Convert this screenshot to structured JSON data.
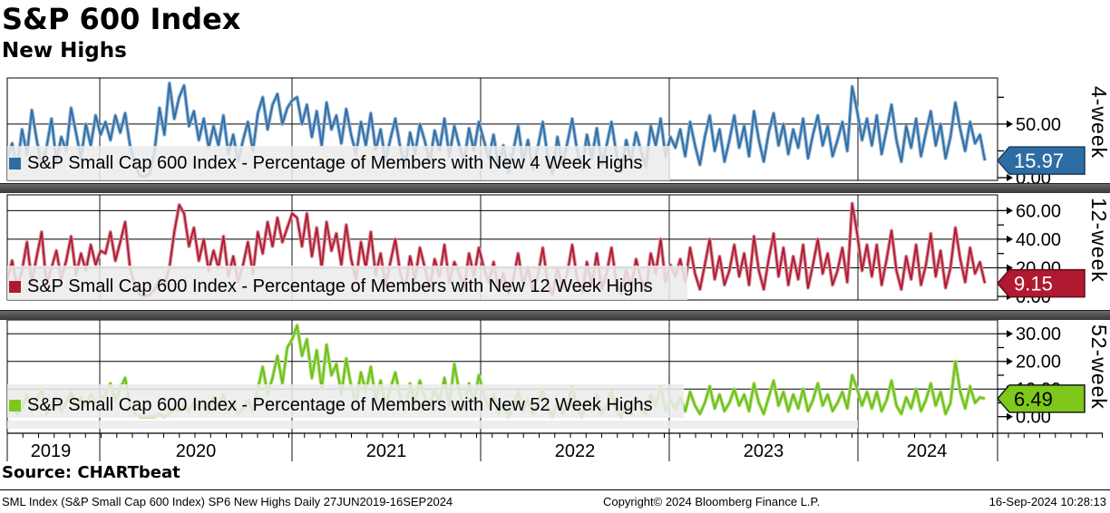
{
  "header": {
    "title": "S&P 600 Index",
    "subtitle": "New Highs"
  },
  "source_line": "Source: CHARTbeat",
  "footer": {
    "left": "SML Index (S&P Small Cap 600 Index) SP6 New Highs  Daily 27JUN2019-16SEP2024",
    "center": "Copyright© 2024 Bloomberg Finance L.P.",
    "right": "16-Sep-2024 10:28:13"
  },
  "x_axis": {
    "year_labels": [
      "2019",
      "2020",
      "2021",
      "2022",
      "2023",
      "2024"
    ]
  },
  "chart_data": [
    {
      "type": "line",
      "axis_label": "4-week",
      "legend": "S&P Small Cap 600 Index - Percentage of Members with New 4 Week Highs",
      "color": "#2e6da4",
      "halo_color": "#8fb2d4",
      "tag": {
        "label": "15.97",
        "bg": "#2e6da4",
        "fg": "#ffffff",
        "border": "#173c5f"
      },
      "ylim": [
        -2.5,
        93
      ],
      "yticks": [
        {
          "v": 50,
          "label": "50.00"
        },
        {
          "v": 0,
          "label": "0.00"
        }
      ],
      "minor_ticks": [
        75,
        25
      ],
      "gridlines": [
        50
      ],
      "values": [
        18,
        32,
        8,
        45,
        22,
        63,
        35,
        12,
        28,
        55,
        15,
        38,
        25,
        65,
        42,
        18,
        50,
        30,
        58,
        40,
        52,
        35,
        58,
        42,
        60,
        30,
        12,
        2,
        1,
        4,
        25,
        65,
        40,
        88,
        55,
        75,
        86,
        48,
        62,
        35,
        55,
        28,
        48,
        30,
        58,
        22,
        40,
        15,
        35,
        52,
        25,
        60,
        75,
        45,
        68,
        78,
        50,
        65,
        72,
        75,
        50,
        68,
        38,
        62,
        30,
        70,
        45,
        58,
        32,
        64,
        40,
        22,
        52,
        30,
        60,
        26,
        45,
        16,
        36,
        55,
        28,
        10,
        42,
        22,
        50,
        34,
        14,
        44,
        26,
        55,
        20,
        48,
        30,
        15,
        46,
        25,
        52,
        35,
        18,
        40,
        10,
        30,
        5,
        25,
        48,
        15,
        35,
        8,
        28,
        52,
        20,
        4,
        38,
        12,
        32,
        55,
        25,
        8,
        40,
        18,
        46,
        12,
        30,
        52,
        22,
        6,
        35,
        15,
        42,
        25,
        10,
        48,
        30,
        55,
        20,
        38,
        28,
        45,
        20,
        52,
        30,
        12,
        38,
        58,
        25,
        45,
        15,
        35,
        58,
        28,
        48,
        20,
        62,
        35,
        15,
        42,
        60,
        30,
        50,
        22,
        45,
        28,
        55,
        18,
        40,
        58,
        30,
        48,
        20,
        35,
        52,
        25,
        85,
        62,
        35,
        55,
        30,
        58,
        22,
        45,
        68,
        35,
        15,
        48,
        28,
        55,
        20,
        42,
        62,
        30,
        50,
        18,
        38,
        70,
        45,
        25,
        52,
        32,
        40,
        15.97
      ]
    },
    {
      "type": "line",
      "axis_label": "12-week",
      "legend": "S&P Small Cap 600 Index - Percentage of Members with New 12 Week Highs",
      "color": "#b01a31",
      "halo_color": "#d78f9c",
      "tag": {
        "label": "9.15",
        "bg": "#b01a31",
        "fg": "#ffffff",
        "border": "#5e0d1a"
      },
      "ylim": [
        -2.5,
        71
      ],
      "yticks": [
        {
          "v": 60,
          "label": "60.00"
        },
        {
          "v": 40,
          "label": "40.00"
        },
        {
          "v": 20,
          "label": "20.00"
        },
        {
          "v": 0,
          "label": "0.00"
        }
      ],
      "minor_ticks": [
        50,
        30,
        10
      ],
      "gridlines": [
        60,
        40,
        20
      ],
      "values": [
        12,
        25,
        6,
        18,
        38,
        10,
        28,
        45,
        8,
        20,
        32,
        12,
        25,
        42,
        15,
        30,
        18,
        36,
        22,
        32,
        30,
        45,
        25,
        38,
        52,
        20,
        8,
        1,
        0,
        1,
        5,
        12,
        8,
        20,
        45,
        64,
        58,
        35,
        48,
        25,
        40,
        18,
        32,
        20,
        42,
        14,
        28,
        10,
        22,
        38,
        16,
        45,
        30,
        52,
        35,
        55,
        38,
        48,
        58,
        55,
        35,
        58,
        28,
        48,
        20,
        52,
        32,
        44,
        22,
        50,
        26,
        12,
        38,
        20,
        45,
        15,
        30,
        8,
        24,
        40,
        16,
        5,
        28,
        12,
        34,
        20,
        6,
        26,
        14,
        36,
        10,
        24,
        16,
        6,
        30,
        14,
        34,
        20,
        10,
        24,
        5,
        16,
        2,
        12,
        30,
        8,
        20,
        4,
        14,
        34,
        10,
        1,
        20,
        6,
        16,
        36,
        12,
        3,
        24,
        8,
        30,
        5,
        16,
        34,
        10,
        2,
        18,
        6,
        26,
        12,
        4,
        30,
        16,
        40,
        10,
        22,
        14,
        26,
        10,
        34,
        16,
        5,
        22,
        40,
        12,
        28,
        8,
        18,
        36,
        14,
        30,
        8,
        42,
        18,
        5,
        26,
        44,
        14,
        34,
        8,
        28,
        12,
        36,
        6,
        22,
        40,
        16,
        30,
        8,
        18,
        34,
        10,
        65,
        44,
        18,
        36,
        14,
        36,
        8,
        26,
        46,
        18,
        5,
        28,
        12,
        36,
        8,
        22,
        44,
        14,
        32,
        6,
        20,
        48,
        26,
        10,
        34,
        16,
        24,
        9.15
      ]
    },
    {
      "type": "line",
      "axis_label": "52-week",
      "legend": "S&P Small Cap 600 Index - Percentage of Members with New 52 Week Highs",
      "color": "#6cbe18",
      "halo_color": "#aede77",
      "tag": {
        "label": "6.49",
        "bg": "#7ec81c",
        "fg": "#000000",
        "border": "#1a1a1a"
      },
      "ylim": [
        -6,
        35
      ],
      "yticks": [
        {
          "v": 30,
          "label": "30.00"
        },
        {
          "v": 20,
          "label": "20.00"
        },
        {
          "v": 10,
          "label": "10.00"
        },
        {
          "v": 0,
          "label": "0.00"
        }
      ],
      "minor_ticks": [
        25,
        15,
        5
      ],
      "gridlines": [
        30,
        20,
        10
      ],
      "values": [
        2,
        5,
        1,
        3,
        8,
        2,
        6,
        10,
        1,
        4,
        7,
        2,
        5,
        9,
        3,
        7,
        4,
        8,
        5,
        6,
        8,
        12,
        6,
        10,
        14,
        4,
        1,
        0,
        0,
        0,
        0,
        1,
        0,
        1,
        3,
        2,
        4,
        2,
        5,
        3,
        6,
        2,
        7,
        4,
        8,
        2,
        5,
        1,
        3,
        6,
        2,
        10,
        18,
        8,
        14,
        22,
        12,
        25,
        28,
        33,
        22,
        28,
        14,
        24,
        10,
        26,
        15,
        19,
        8,
        21,
        11,
        5,
        16,
        9,
        18,
        6,
        13,
        4,
        10,
        16,
        7,
        2,
        12,
        5,
        13,
        7,
        3,
        10,
        5,
        14,
        4,
        19,
        9,
        3,
        12,
        5,
        15,
        8,
        3,
        8,
        1,
        5,
        0,
        3,
        9,
        2,
        6,
        1,
        4,
        10,
        3,
        0,
        5,
        1,
        4,
        11,
        3,
        0,
        6,
        2,
        8,
        1,
        4,
        9,
        2,
        0,
        5,
        1,
        7,
        3,
        1,
        8,
        4,
        11,
        2,
        6,
        3,
        7,
        2,
        9,
        4,
        1,
        5,
        11,
        3,
        8,
        2,
        5,
        10,
        4,
        8,
        2,
        12,
        5,
        1,
        7,
        13,
        4,
        9,
        2,
        8,
        3,
        10,
        2,
        6,
        12,
        4,
        8,
        2,
        5,
        9,
        3,
        15,
        10,
        4,
        9,
        3,
        9,
        2,
        6,
        13,
        4,
        1,
        7,
        3,
        10,
        2,
        6,
        12,
        4,
        9,
        1,
        5,
        20,
        9,
        3,
        11,
        5,
        7,
        6.49
      ]
    }
  ]
}
